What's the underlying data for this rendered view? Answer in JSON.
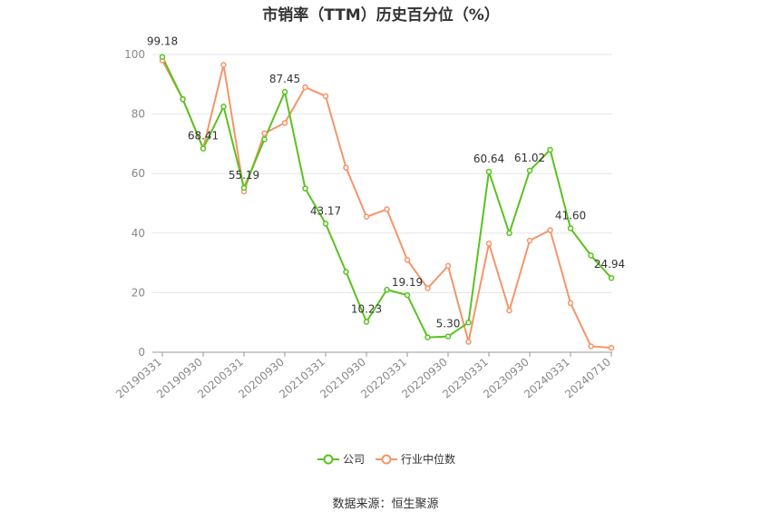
{
  "chart_data": {
    "type": "line",
    "title": "市销率（TTM）历史百分位（%）",
    "x_ticks": [
      "20190331",
      "20190930",
      "20200331",
      "20200930",
      "20210331",
      "20210930",
      "20220331",
      "20220930",
      "20230331",
      "20230930",
      "20240331",
      "20240710"
    ],
    "ylim": [
      0,
      100
    ],
    "y_ticks": [
      0,
      20,
      40,
      60,
      80,
      100
    ],
    "grid": true,
    "legend_position": "bottom",
    "series": [
      {
        "name": "公司",
        "color": "#5ac21f",
        "values": [
          99.18,
          85,
          68.41,
          82.5,
          55.19,
          71.5,
          87.45,
          55,
          43.17,
          27,
          10.23,
          21,
          19.19,
          5,
          5.3,
          10,
          60.64,
          40,
          61.02,
          68,
          41.6,
          32.5,
          24.94
        ]
      },
      {
        "name": "行业中位数",
        "color": "#f4956a",
        "values": [
          98,
          85,
          68.5,
          96.5,
          54,
          73.5,
          77,
          89,
          86,
          62,
          45.5,
          48,
          31,
          21.5,
          29,
          3.5,
          36.5,
          14,
          37.5,
          41,
          16.5,
          2,
          1.5
        ]
      }
    ],
    "data_labels": [
      {
        "index": 0,
        "text": "99.18"
      },
      {
        "index": 2,
        "text": "68.41"
      },
      {
        "index": 4,
        "text": "55.19"
      },
      {
        "index": 6,
        "text": "87.45"
      },
      {
        "index": 8,
        "text": "43.17"
      },
      {
        "index": 10,
        "text": "10.23"
      },
      {
        "index": 12,
        "text": "19.19"
      },
      {
        "index": 14,
        "text": "5.30"
      },
      {
        "index": 16,
        "text": "60.64"
      },
      {
        "index": 18,
        "text": "61.02"
      },
      {
        "index": 20,
        "text": "41.60"
      },
      {
        "index": 22,
        "text": "24.94"
      }
    ]
  },
  "source_text": "数据来源：恒生聚源"
}
